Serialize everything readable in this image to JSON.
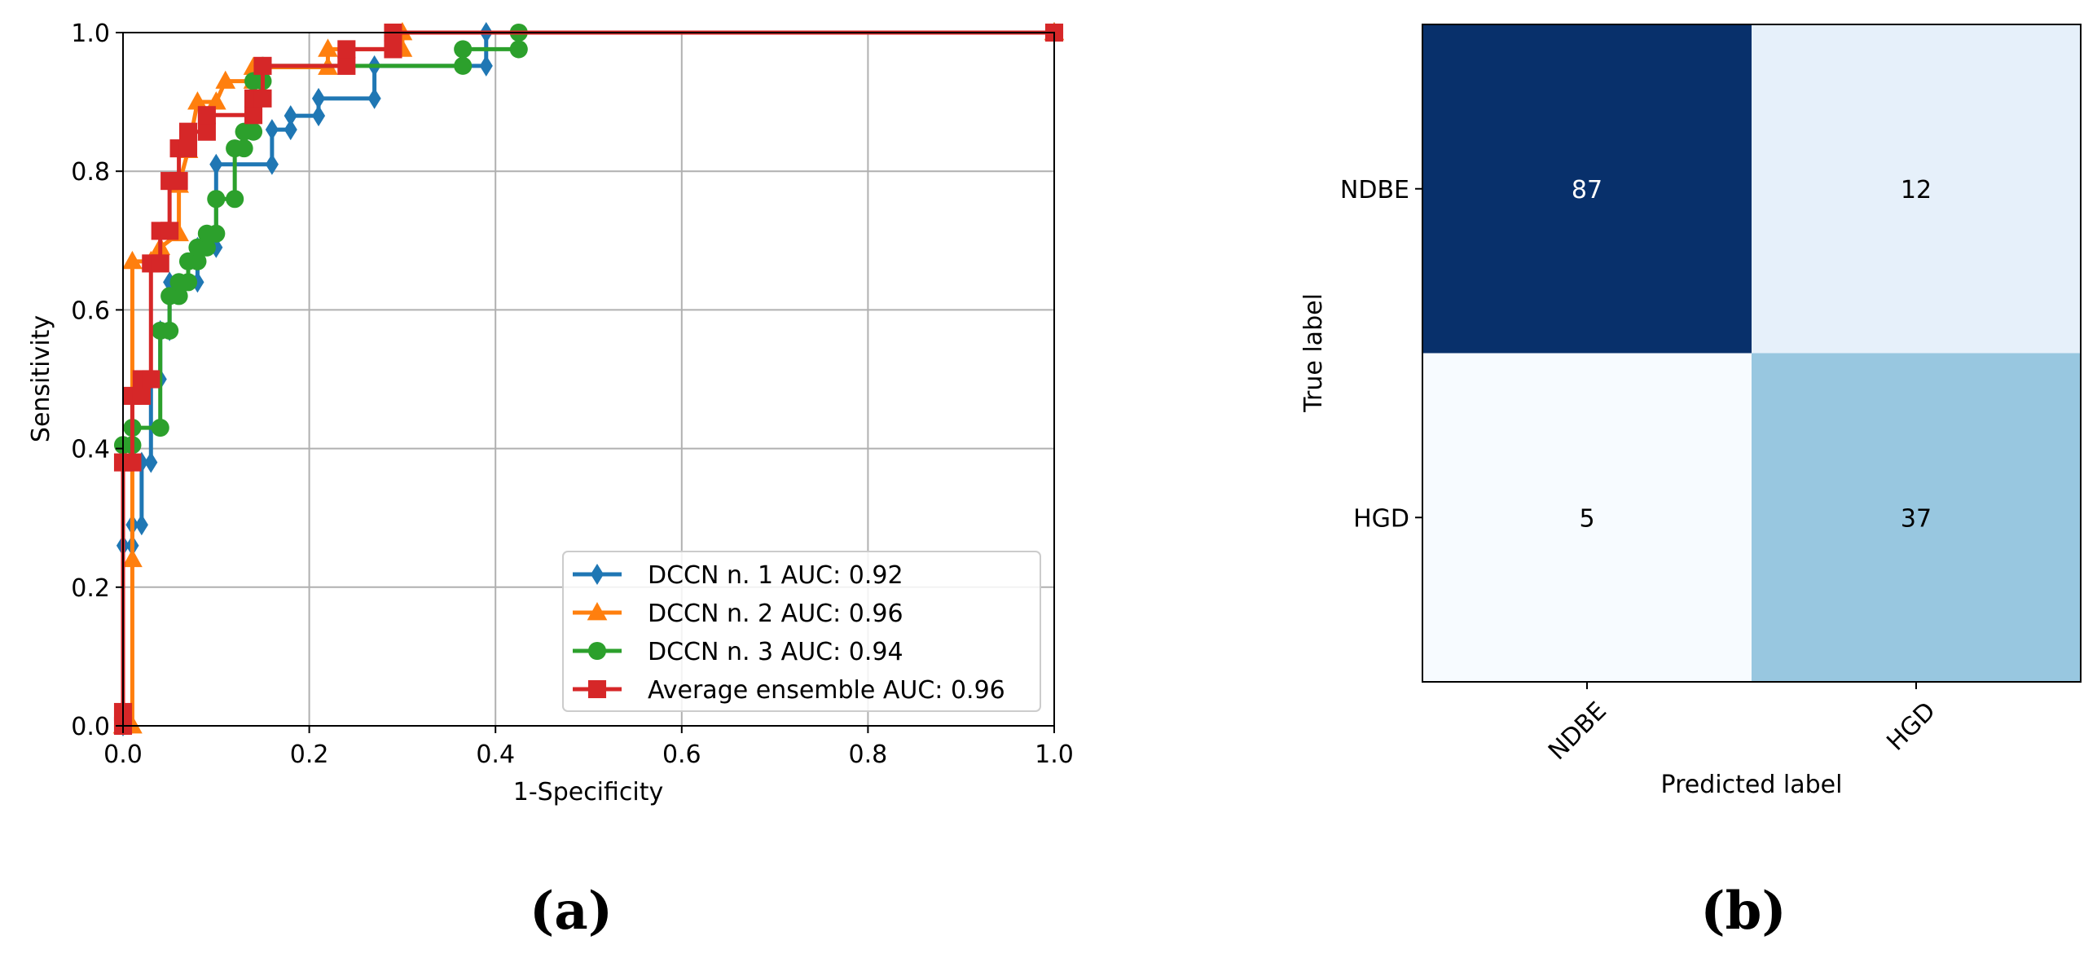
{
  "figure": {
    "panel_a": "(a)",
    "panel_b": "(b)"
  },
  "chart_data": [
    {
      "type": "line",
      "xlabel": "1-Specificity",
      "ylabel": "Sensitivity",
      "xlim": [
        0,
        1
      ],
      "ylim": [
        0,
        1
      ],
      "xticks": [
        "0.0",
        "0.2",
        "0.4",
        "0.6",
        "0.8",
        "1.0"
      ],
      "yticks": [
        "0.0",
        "0.2",
        "0.4",
        "0.6",
        "0.8",
        "1.0"
      ],
      "grid": true,
      "legend_position": "lower-right",
      "series": [
        {
          "name": "DCCN n. 1 AUC: 0.92",
          "color": "#1f77b4",
          "marker": "diamond",
          "points": [
            [
              0,
              0
            ],
            [
              0,
              0.26
            ],
            [
              0.01,
              0.26
            ],
            [
              0.01,
              0.29
            ],
            [
              0.02,
              0.29
            ],
            [
              0.02,
              0.38
            ],
            [
              0.03,
              0.38
            ],
            [
              0.03,
              0.5
            ],
            [
              0.04,
              0.5
            ],
            [
              0.04,
              0.57
            ],
            [
              0.05,
              0.57
            ],
            [
              0.05,
              0.64
            ],
            [
              0.08,
              0.64
            ],
            [
              0.08,
              0.69
            ],
            [
              0.1,
              0.69
            ],
            [
              0.1,
              0.81
            ],
            [
              0.16,
              0.81
            ],
            [
              0.16,
              0.86
            ],
            [
              0.18,
              0.86
            ],
            [
              0.18,
              0.88
            ],
            [
              0.21,
              0.88
            ],
            [
              0.21,
              0.905
            ],
            [
              0.27,
              0.905
            ],
            [
              0.27,
              0.952
            ],
            [
              0.39,
              0.952
            ],
            [
              0.39,
              1.0
            ],
            [
              1.0,
              1.0
            ]
          ]
        },
        {
          "name": "DCCN n. 2 AUC: 0.96",
          "color": "#ff7f0e",
          "marker": "triangle",
          "points": [
            [
              0,
              0
            ],
            [
              0.01,
              0
            ],
            [
              0.01,
              0.24
            ],
            [
              0.01,
              0.67
            ],
            [
              0.03,
              0.67
            ],
            [
              0.04,
              0.69
            ],
            [
              0.06,
              0.71
            ],
            [
              0.06,
              0.78
            ],
            [
              0.07,
              0.83
            ],
            [
              0.08,
              0.9
            ],
            [
              0.1,
              0.9
            ],
            [
              0.11,
              0.93
            ],
            [
              0.14,
              0.93
            ],
            [
              0.14,
              0.95
            ],
            [
              0.22,
              0.95
            ],
            [
              0.22,
              0.976
            ],
            [
              0.3,
              0.976
            ],
            [
              0.3,
              1.0
            ],
            [
              1.0,
              1.0
            ]
          ]
        },
        {
          "name": "DCCN n. 3 AUC: 0.94",
          "color": "#2ca02c",
          "marker": "circle",
          "points": [
            [
              0,
              0
            ],
            [
              0,
              0.405
            ],
            [
              0.01,
              0.405
            ],
            [
              0.01,
              0.43
            ],
            [
              0.04,
              0.43
            ],
            [
              0.04,
              0.57
            ],
            [
              0.05,
              0.57
            ],
            [
              0.05,
              0.62
            ],
            [
              0.06,
              0.62
            ],
            [
              0.06,
              0.64
            ],
            [
              0.07,
              0.64
            ],
            [
              0.07,
              0.67
            ],
            [
              0.08,
              0.67
            ],
            [
              0.08,
              0.69
            ],
            [
              0.09,
              0.69
            ],
            [
              0.09,
              0.71
            ],
            [
              0.1,
              0.71
            ],
            [
              0.1,
              0.76
            ],
            [
              0.12,
              0.76
            ],
            [
              0.12,
              0.833
            ],
            [
              0.13,
              0.833
            ],
            [
              0.13,
              0.857
            ],
            [
              0.14,
              0.857
            ],
            [
              0.14,
              0.93
            ],
            [
              0.15,
              0.93
            ],
            [
              0.15,
              0.952
            ],
            [
              0.365,
              0.952
            ],
            [
              0.365,
              0.976
            ],
            [
              0.425,
              0.976
            ],
            [
              0.425,
              1.0
            ],
            [
              1.0,
              1.0
            ]
          ]
        },
        {
          "name": "Average ensemble AUC: 0.96",
          "color": "#d62728",
          "marker": "square",
          "points": [
            [
              0,
              0
            ],
            [
              0,
              0.02
            ],
            [
              0,
              0.38
            ],
            [
              0.01,
              0.38
            ],
            [
              0.01,
              0.476
            ],
            [
              0.02,
              0.476
            ],
            [
              0.02,
              0.5
            ],
            [
              0.03,
              0.5
            ],
            [
              0.03,
              0.667
            ],
            [
              0.04,
              0.667
            ],
            [
              0.04,
              0.714
            ],
            [
              0.05,
              0.714
            ],
            [
              0.05,
              0.786
            ],
            [
              0.06,
              0.786
            ],
            [
              0.06,
              0.833
            ],
            [
              0.07,
              0.833
            ],
            [
              0.07,
              0.857
            ],
            [
              0.09,
              0.857
            ],
            [
              0.09,
              0.881
            ],
            [
              0.14,
              0.881
            ],
            [
              0.14,
              0.905
            ],
            [
              0.15,
              0.905
            ],
            [
              0.15,
              0.952
            ],
            [
              0.24,
              0.952
            ],
            [
              0.24,
              0.976
            ],
            [
              0.29,
              0.976
            ],
            [
              0.29,
              1.0
            ],
            [
              1.0,
              1.0
            ]
          ]
        }
      ]
    },
    {
      "type": "heatmap",
      "xlabel": "Predicted label",
      "ylabel": "True label",
      "x_categories": [
        "NDBE",
        "HGD"
      ],
      "y_categories": [
        "NDBE",
        "HGD"
      ],
      "values": [
        [
          87,
          12
        ],
        [
          5,
          37
        ]
      ],
      "colormap": "Blues"
    }
  ]
}
